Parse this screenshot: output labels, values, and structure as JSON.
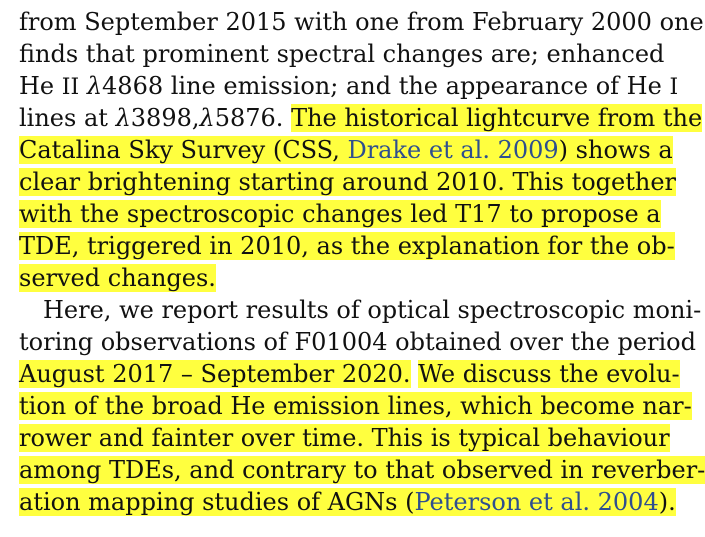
{
  "paragraph1": {
    "l1": "from September 2015 with one from February 2000 one",
    "l2": "finds that prominent spectral changes are; enhanced",
    "l3a": "He",
    "l3b": "II",
    "l3c": "λ",
    "l3d": "4868 line emission; and the appearance of He",
    "l3e": "I",
    "l4a": "lines at",
    "l4b": "λ",
    "l4c": "3898,",
    "l4d": "λ",
    "l4e": "5876.",
    "l4f": "The historical lightcurve from the",
    "l5a": "Catalina Sky Survey (CSS,",
    "l5b": "Drake et al. 2009",
    "l5c": ") shows a",
    "l6": "clear brightening starting around 2010. This together",
    "l7": "with the spectroscopic changes led T17 to propose a",
    "l8": "TDE, triggered in 2010, as the explanation for the ob-",
    "l9": "served changes."
  },
  "paragraph2": {
    "l1": "Here, we report results of optical spectroscopic moni-",
    "l2": "toring observations of F01004 obtained over the period",
    "l3a": "August 2017 – September 2020.",
    "l3b": "We discuss the evolu-",
    "l4": "tion of the broad He emission lines, which become nar-",
    "l5": "rower and fainter over time. This is typical behaviour",
    "l6": "among TDEs, and contrary to that observed in reverber-",
    "l7a": "ation mapping studies of AGNs (",
    "l7b": "Peterson et al. 2004",
    "l7c": ")."
  },
  "colors": {
    "highlight": "#ffff3f",
    "citation": "#2e4f8f",
    "text": "#111111"
  }
}
